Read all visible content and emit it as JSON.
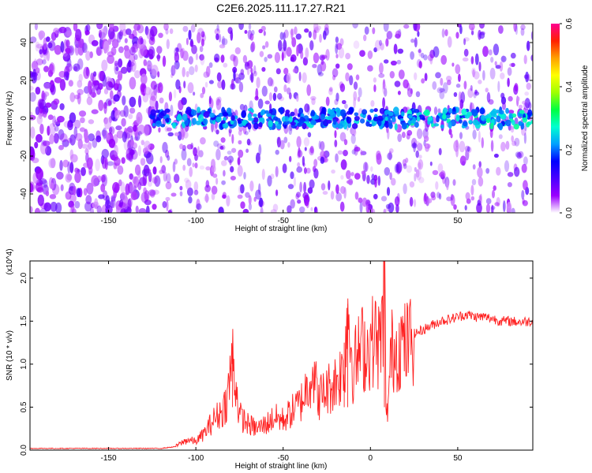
{
  "page_title": "C2E6.2025.111.17.27.R21",
  "chart_data": [
    {
      "type": "heatmap",
      "xlabel": "Height of straight line (km)",
      "ylabel": "Frequency (Hz)",
      "xlim": [
        -195,
        93
      ],
      "ylim": [
        -50,
        50
      ],
      "xticks": [
        -150,
        -100,
        -50,
        0,
        50
      ],
      "yticks": [
        -40,
        -20,
        0,
        20,
        40
      ],
      "colorbar": {
        "label": "Normalized spectral amplitude",
        "range": [
          0.0,
          0.6
        ],
        "ticks": [
          0.0,
          0.2,
          0.4,
          0.6
        ],
        "tick_labels": [
          "0.0",
          "0.2",
          "0.4",
          "0.6"
        ],
        "colormap": [
          "#ffffff",
          "#9b00ff",
          "#4a00ff",
          "#0000ff",
          "#00a0ff",
          "#00ffd0",
          "#00ff40",
          "#a0ff00",
          "#ffff00",
          "#ffa000",
          "#ff2000",
          "#ff0090"
        ]
      },
      "features": [
        {
          "x_range": [
            -195,
            -122
          ],
          "freq_range": [
            -50,
            50
          ],
          "amplitude": 0.06
        },
        {
          "x_range": [
            -122,
            93
          ],
          "freq_range": [
            -50,
            50
          ],
          "amplitude": 0.08
        },
        {
          "x_range": [
            -125,
            93
          ],
          "freq_range": [
            -5,
            5
          ],
          "amplitude": 0.2
        }
      ]
    },
    {
      "type": "line",
      "xlabel": "Height of straight line (km)",
      "ylabel": "SNR (10 * v/v)",
      "y_multiplier": "(x10^4)",
      "xlim": [
        -195,
        93
      ],
      "ylim": [
        0,
        2.2
      ],
      "xticks": [
        -150,
        -100,
        -50,
        0,
        50
      ],
      "yticks": [
        0.0,
        0.5,
        1.0,
        1.5,
        2.0
      ],
      "ytick_labels": [
        "0.0",
        "0.5",
        "1.0",
        "1.5",
        "2.0"
      ],
      "series": [
        {
          "color": "#ff2020",
          "x": [
            -195,
            -150,
            -120,
            -112,
            -105,
            -100,
            -95,
            -90,
            -85,
            -82,
            -79,
            -75,
            -70,
            -65,
            -60,
            -55,
            -50,
            -45,
            -40,
            -36,
            -33,
            -30,
            -25,
            -20,
            -15,
            -13,
            -10,
            -7,
            -5,
            -2,
            0,
            3,
            5,
            7,
            8,
            9,
            10,
            12,
            15,
            18,
            20,
            25,
            30,
            35,
            40,
            45,
            50,
            55,
            60,
            65,
            70,
            75,
            80,
            85,
            93
          ],
          "y": [
            0.02,
            0.02,
            0.02,
            0.04,
            0.12,
            0.1,
            0.2,
            0.35,
            0.45,
            0.6,
            1.1,
            0.4,
            0.3,
            0.25,
            0.3,
            0.38,
            0.35,
            0.45,
            0.55,
            0.75,
            0.95,
            0.6,
            0.7,
            0.8,
            0.95,
            1.7,
            0.95,
            1.1,
            1.2,
            1.15,
            1.25,
            1.3,
            1.2,
            1.45,
            2.2,
            0.3,
            0.55,
            1.15,
            1.2,
            1.25,
            1.2,
            1.35,
            1.4,
            1.45,
            1.5,
            1.52,
            1.55,
            1.58,
            1.55,
            1.55,
            1.53,
            1.5,
            1.5,
            1.49,
            1.5
          ]
        }
      ]
    }
  ]
}
